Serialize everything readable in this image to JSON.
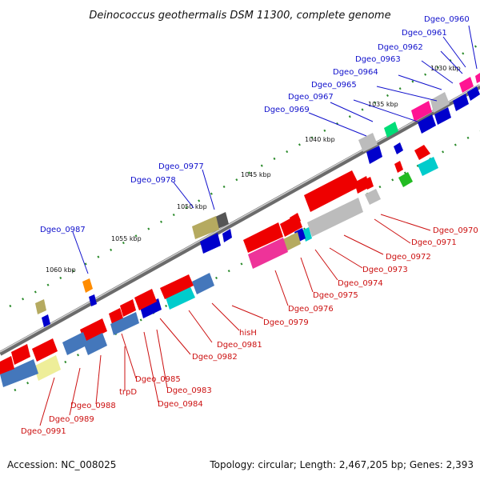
{
  "title": "Deinococcus geothermalis DSM 11300, complete genome",
  "footer": {
    "accession": "Accession: NC_008025",
    "summary": "Topology: circular; Length: 2,467,205 bp; Genes: 2,393"
  },
  "colors": {
    "backbone": "#7a7a7a",
    "label_blue": "#1010cc",
    "label_red": "#cc1010",
    "tick": "#2a8a2a"
  },
  "scale_labels": [
    "1030 kbp",
    "1035 kbp",
    "1040 kbp",
    "1045 kbp",
    "1050 kbp",
    "1055 kbp",
    "1060 kbp"
  ],
  "gene_labels_top": [
    "Dgeo_0960",
    "Dgeo_0961",
    "Dgeo_0962",
    "Dgeo_0963",
    "Dgeo_0964",
    "Dgeo_0965",
    "Dgeo_0967",
    "Dgeo_0969",
    "Dgeo_0977",
    "Dgeo_0978",
    "Dgeo_0987"
  ],
  "gene_labels_bottom": [
    "Dgeo_0970",
    "Dgeo_0971",
    "Dgeo_0972",
    "Dgeo_0973",
    "Dgeo_0974",
    "Dgeo_0975",
    "Dgeo_0976",
    "Dgeo_0979",
    "hisH",
    "Dgeo_0981",
    "Dgeo_0982",
    "Dgeo_0983",
    "Dgeo_0984",
    "Dgeo_0985",
    "trpD",
    "Dgeo_0988",
    "Dgeo_0989",
    "Dgeo_0991"
  ]
}
